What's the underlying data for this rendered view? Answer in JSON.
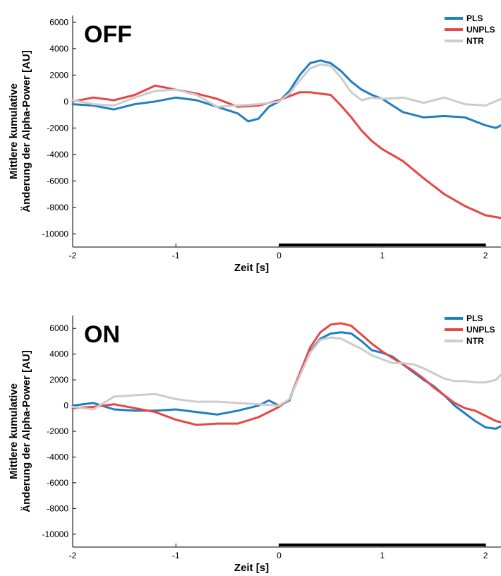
{
  "chart_data": [
    {
      "type": "line",
      "panel_label": "OFF",
      "xlabel": "Zeit [s]",
      "ylabel_lines": [
        "Mittlere kumulative",
        "Änderung der Alpha-Power [AU]"
      ],
      "xlim": [
        -2,
        2.15
      ],
      "ylim": [
        -11000,
        6500
      ],
      "xticks": [
        -2,
        -1,
        0,
        1,
        2
      ],
      "yticks": [
        6000,
        4000,
        2000,
        0,
        -2000,
        -4000,
        -6000,
        -8000,
        -10000
      ],
      "legend_position": "top-right",
      "grid": false,
      "stimulus_bar": [
        0,
        2
      ],
      "series": [
        {
          "name": "PLS",
          "color": "#1f7fc1",
          "x": [
            -2,
            -1.8,
            -1.6,
            -1.4,
            -1.2,
            -1.0,
            -0.8,
            -0.6,
            -0.4,
            -0.3,
            -0.2,
            -0.1,
            0,
            0.1,
            0.2,
            0.3,
            0.4,
            0.5,
            0.6,
            0.7,
            0.8,
            0.9,
            1.0,
            1.1,
            1.2,
            1.4,
            1.6,
            1.8,
            2.0,
            2.1,
            2.15
          ],
          "y": [
            -200,
            -300,
            -600,
            -200,
            0,
            300,
            100,
            -400,
            -900,
            -1500,
            -1300,
            -400,
            0,
            800,
            2000,
            2900,
            3100,
            2900,
            2300,
            1500,
            900,
            500,
            200,
            -300,
            -800,
            -1200,
            -1100,
            -1200,
            -1800,
            -2000,
            -1800
          ]
        },
        {
          "name": "UNPLS",
          "color": "#e84545",
          "x": [
            -2,
            -1.8,
            -1.6,
            -1.4,
            -1.2,
            -1.0,
            -0.8,
            -0.6,
            -0.4,
            -0.2,
            0,
            0.1,
            0.2,
            0.3,
            0.4,
            0.5,
            0.6,
            0.7,
            0.8,
            0.9,
            1.0,
            1.2,
            1.4,
            1.6,
            1.8,
            2.0,
            2.15
          ],
          "y": [
            0,
            300,
            100,
            500,
            1200,
            900,
            600,
            200,
            -400,
            -300,
            100,
            400,
            700,
            700,
            600,
            500,
            -300,
            -1200,
            -2200,
            -3000,
            -3600,
            -4500,
            -5800,
            -7000,
            -7900,
            -8600,
            -8800
          ]
        },
        {
          "name": "NTR",
          "color": "#cccccc",
          "x": [
            -2,
            -1.8,
            -1.6,
            -1.4,
            -1.2,
            -1.0,
            -0.8,
            -0.6,
            -0.4,
            -0.2,
            0,
            0.1,
            0.2,
            0.3,
            0.4,
            0.5,
            0.6,
            0.7,
            0.8,
            0.9,
            1.0,
            1.2,
            1.4,
            1.6,
            1.8,
            2.0,
            2.15
          ],
          "y": [
            100,
            -200,
            -300,
            300,
            800,
            900,
            500,
            -400,
            -300,
            -200,
            0,
            600,
            1600,
            2500,
            2800,
            2700,
            1800,
            700,
            100,
            300,
            200,
            300,
            -100,
            300,
            -200,
            -300,
            200
          ]
        }
      ]
    },
    {
      "type": "line",
      "panel_label": "ON",
      "xlabel": "Zeit [s]",
      "ylabel_lines": [
        "Mittlere kumulative",
        "Änderung der Alpha-Power [AU]"
      ],
      "xlim": [
        -2,
        2.15
      ],
      "ylim": [
        -11000,
        7000
      ],
      "xticks": [
        -2,
        -1,
        0,
        1,
        2
      ],
      "yticks": [
        6000,
        4000,
        2000,
        0,
        -2000,
        -4000,
        -6000,
        -8000,
        -10000
      ],
      "legend_position": "top-right",
      "grid": false,
      "stimulus_bar": [
        0,
        2
      ],
      "series": [
        {
          "name": "PLS",
          "color": "#1f7fc1",
          "x": [
            -2,
            -1.8,
            -1.6,
            -1.4,
            -1.2,
            -1.0,
            -0.8,
            -0.6,
            -0.4,
            -0.2,
            -0.1,
            0,
            0.1,
            0.2,
            0.3,
            0.4,
            0.5,
            0.6,
            0.7,
            0.8,
            0.9,
            1.0,
            1.1,
            1.2,
            1.3,
            1.4,
            1.5,
            1.6,
            1.7,
            1.8,
            1.9,
            2.0,
            2.1,
            2.15
          ],
          "y": [
            0,
            200,
            -300,
            -400,
            -400,
            -300,
            -500,
            -700,
            -400,
            0,
            400,
            0,
            400,
            2500,
            4200,
            5200,
            5600,
            5700,
            5600,
            5000,
            4300,
            4100,
            3800,
            3200,
            2600,
            2000,
            1500,
            800,
            0,
            -600,
            -1200,
            -1700,
            -1800,
            -1600
          ]
        },
        {
          "name": "UNPLS",
          "color": "#e84545",
          "x": [
            -2,
            -1.8,
            -1.6,
            -1.4,
            -1.2,
            -1.0,
            -0.8,
            -0.6,
            -0.4,
            -0.2,
            0,
            0.1,
            0.2,
            0.3,
            0.4,
            0.5,
            0.6,
            0.7,
            0.8,
            0.9,
            1.0,
            1.1,
            1.2,
            1.3,
            1.4,
            1.5,
            1.6,
            1.7,
            1.8,
            1.9,
            2.0,
            2.1,
            2.15
          ],
          "y": [
            -200,
            -100,
            100,
            -200,
            -500,
            -1100,
            -1500,
            -1400,
            -1400,
            -900,
            -100,
            500,
            2500,
            4500,
            5700,
            6300,
            6400,
            6200,
            5500,
            4800,
            4200,
            3700,
            3200,
            2700,
            2100,
            1400,
            800,
            200,
            -200,
            -400,
            -800,
            -1200,
            -1300
          ]
        },
        {
          "name": "NTR",
          "color": "#cccccc",
          "x": [
            -2,
            -1.8,
            -1.6,
            -1.4,
            -1.2,
            -1.0,
            -0.8,
            -0.6,
            -0.4,
            -0.2,
            0,
            0.1,
            0.2,
            0.3,
            0.4,
            0.5,
            0.6,
            0.7,
            0.8,
            0.9,
            1.0,
            1.1,
            1.2,
            1.3,
            1.4,
            1.5,
            1.6,
            1.7,
            1.8,
            1.9,
            2.0,
            2.1,
            2.15
          ],
          "y": [
            -100,
            -300,
            700,
            800,
            900,
            500,
            300,
            300,
            200,
            100,
            0,
            500,
            2300,
            4100,
            5100,
            5300,
            5200,
            4800,
            4400,
            3900,
            3600,
            3300,
            3300,
            3200,
            2900,
            2500,
            2100,
            1900,
            1900,
            1800,
            1800,
            2000,
            2400
          ]
        }
      ]
    }
  ]
}
